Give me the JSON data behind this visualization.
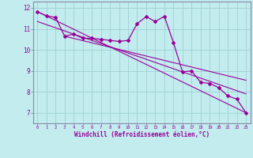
{
  "xlabel": "Windchill (Refroidissement éolien,°C)",
  "bg_color": "#c2ecee",
  "line_color": "#990099",
  "grid_color": "#a0d0d4",
  "spine_color": "#8888aa",
  "xlim": [
    -0.5,
    23.5
  ],
  "ylim": [
    6.5,
    12.3
  ],
  "yticks": [
    7,
    8,
    9,
    10,
    11,
    12
  ],
  "xticks": [
    0,
    1,
    2,
    3,
    4,
    5,
    6,
    7,
    8,
    9,
    10,
    11,
    12,
    13,
    14,
    15,
    16,
    17,
    18,
    19,
    20,
    21,
    22,
    23
  ],
  "zigzag_x": [
    0,
    1,
    2,
    3,
    4,
    5,
    6,
    7,
    8,
    9,
    10,
    11,
    12,
    13,
    14,
    15,
    16,
    17,
    18,
    19,
    20,
    21,
    22,
    23
  ],
  "zigzag_y": [
    11.82,
    11.62,
    11.55,
    10.65,
    10.75,
    10.55,
    10.55,
    10.5,
    10.45,
    10.4,
    10.45,
    11.25,
    11.58,
    11.35,
    11.6,
    10.35,
    8.95,
    9.0,
    8.45,
    8.4,
    8.2,
    7.8,
    7.65,
    7.0
  ],
  "line1_x": [
    0,
    23
  ],
  "line1_y": [
    11.82,
    7.0
  ],
  "line2_x": [
    0,
    23
  ],
  "line2_y": [
    11.35,
    7.9
  ],
  "line3_x": [
    3,
    23
  ],
  "line3_y": [
    10.65,
    8.55
  ]
}
